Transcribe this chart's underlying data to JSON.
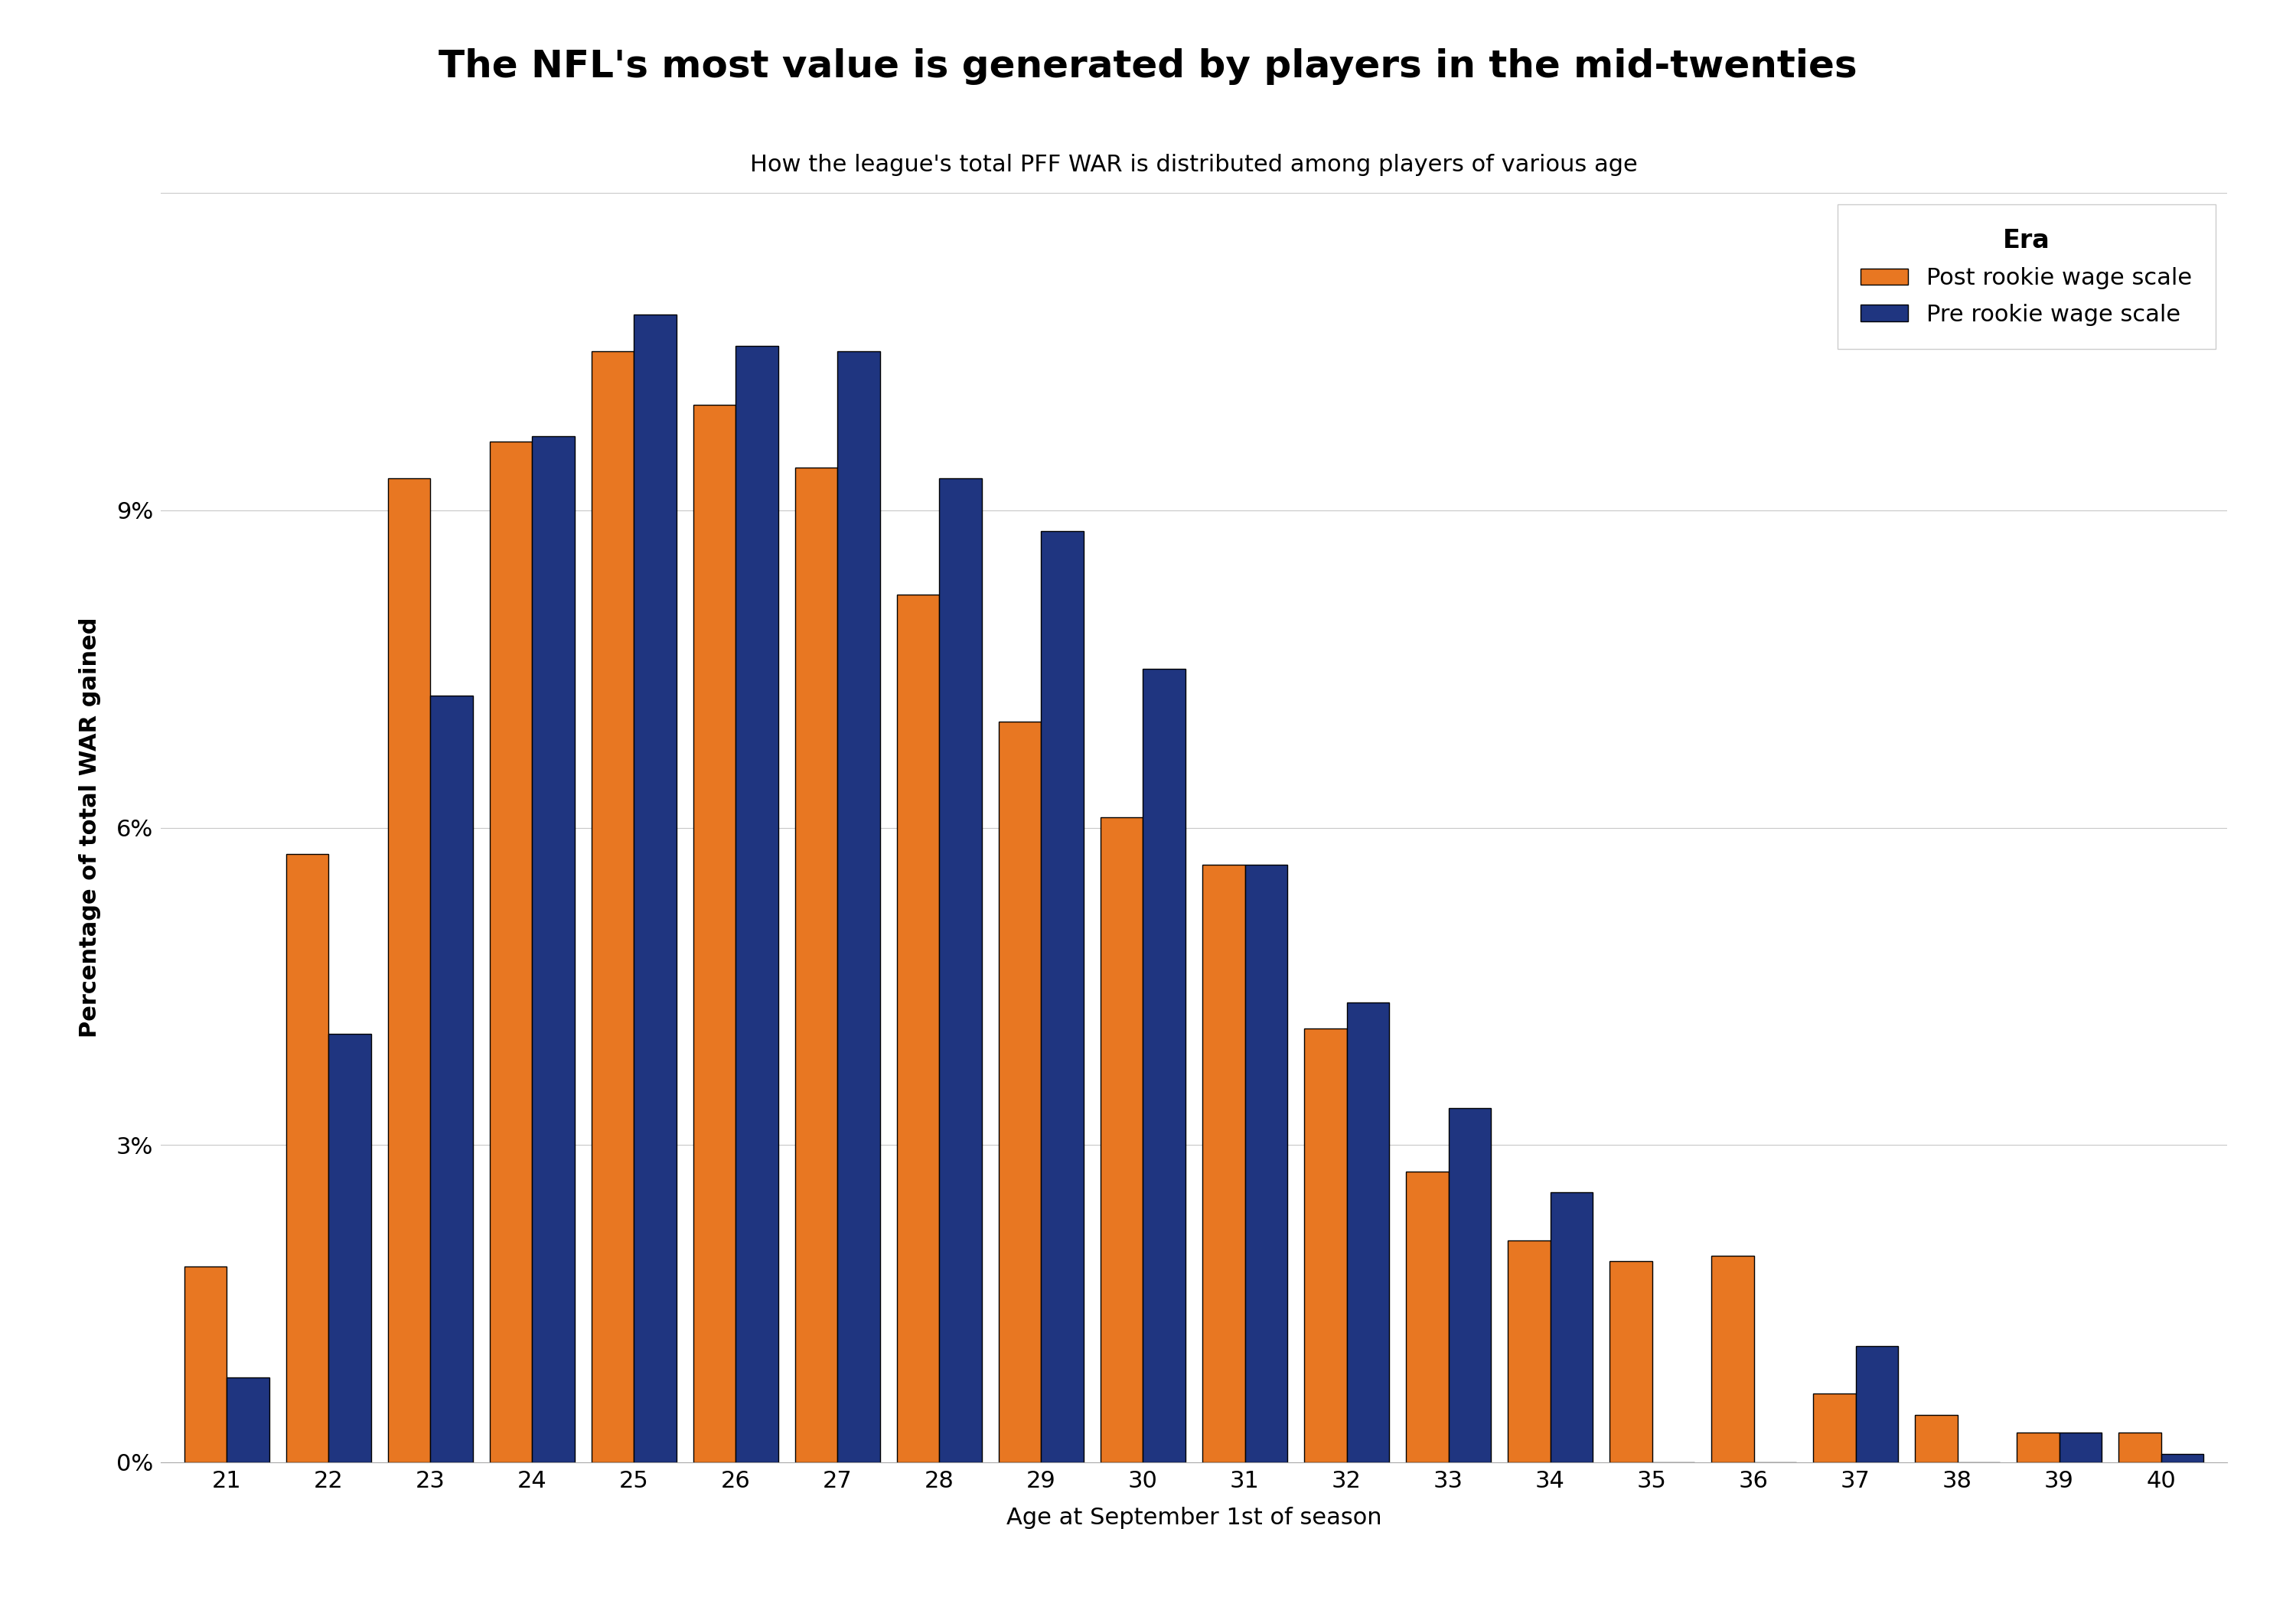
{
  "title": "The NFL's most value is generated by players in the mid-twenties",
  "subtitle": "How the league's total PFF WAR is distributed among players of various age",
  "xlabel": "Age at September 1st of season",
  "ylabel": "Percentage of total WAR gained",
  "ages": [
    21,
    22,
    23,
    24,
    25,
    26,
    27,
    28,
    29,
    30,
    31,
    32,
    33,
    34,
    35,
    36,
    37,
    38,
    39,
    40
  ],
  "post_rookie": [
    1.85,
    5.75,
    9.3,
    9.65,
    10.5,
    10.0,
    9.4,
    8.2,
    7.0,
    6.1,
    5.65,
    4.1,
    2.75,
    2.1,
    1.9,
    1.95,
    0.65,
    0.45,
    0.28,
    0.28
  ],
  "pre_rookie": [
    0.8,
    4.05,
    7.25,
    9.7,
    10.85,
    10.55,
    10.5,
    9.3,
    8.8,
    7.5,
    5.65,
    4.35,
    3.35,
    2.55,
    0.0,
    0.0,
    1.1,
    0.0,
    0.28,
    0.08
  ],
  "post_color": "#E87722",
  "pre_color": "#1F3580",
  "bg_color": "#FFFFFF",
  "grid_color": "#C8C8C8",
  "bar_edge_color": "#000000",
  "legend_title": "Era",
  "legend_post": "Post rookie wage scale",
  "legend_pre": "Pre rookie wage scale",
  "ylim": [
    0,
    12
  ],
  "yticks": [
    0,
    3,
    6,
    9,
    12
  ],
  "ytick_labels": [
    "0%",
    "3%",
    "6%",
    "9%",
    ""
  ],
  "title_fontsize": 36,
  "subtitle_fontsize": 22,
  "axis_label_fontsize": 22,
  "tick_fontsize": 22,
  "legend_fontsize": 22,
  "legend_title_fontsize": 24
}
